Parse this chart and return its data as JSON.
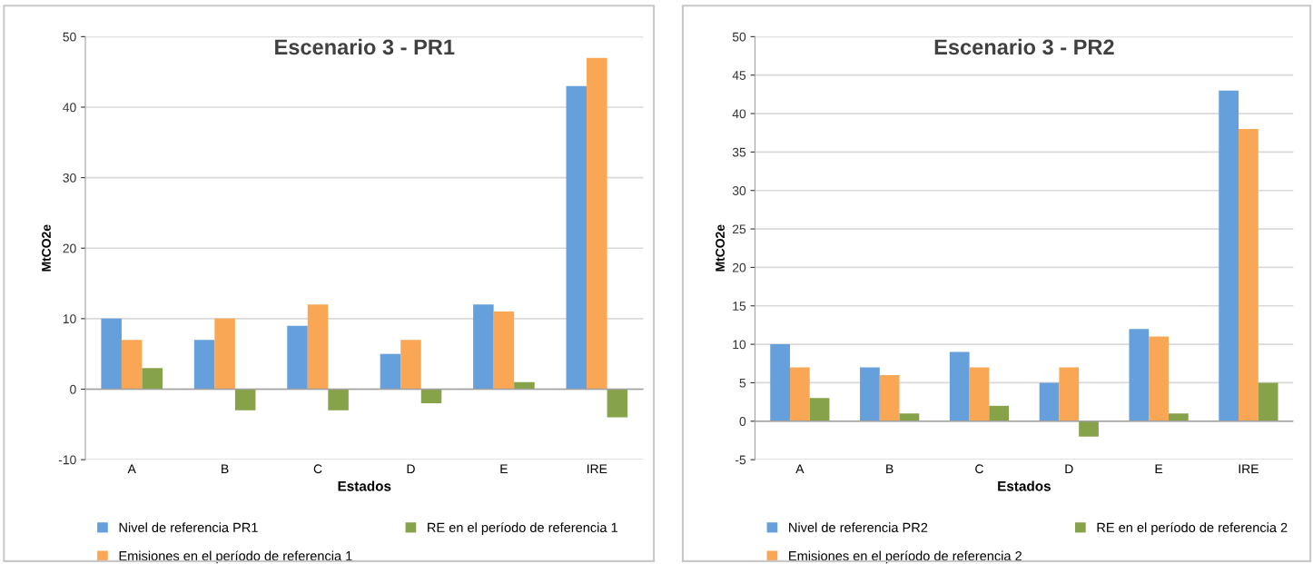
{
  "chart_data": [
    {
      "type": "bar",
      "title": "Escenario 3 - PR1",
      "xlabel": "Estados",
      "ylabel": "MtCO2e",
      "categories": [
        "A",
        "B",
        "C",
        "D",
        "E",
        "IRE"
      ],
      "series": [
        {
          "name": "Nivel de referencia PR1",
          "color": "#659fdc",
          "values": [
            10,
            7,
            9,
            5,
            12,
            43
          ]
        },
        {
          "name": "Emisiones en el período de referencia 1",
          "color": "#f9a655",
          "values": [
            7,
            10,
            12,
            7,
            11,
            47
          ]
        },
        {
          "name": "RE en el período de referencia 1",
          "color": "#87a34a",
          "values": [
            3,
            -3,
            -3,
            -2,
            1,
            -4
          ]
        }
      ],
      "ylim": [
        -10,
        50
      ],
      "yticks": [
        -10,
        0,
        10,
        20,
        30,
        40,
        50
      ],
      "grid": "y",
      "legend": "bottom"
    },
    {
      "type": "bar",
      "title": "Escenario 3 - PR2",
      "xlabel": "Estados",
      "ylabel": "MtCO2e",
      "categories": [
        "A",
        "B",
        "C",
        "D",
        "E",
        "IRE"
      ],
      "series": [
        {
          "name": "Nivel de referencia PR2",
          "color": "#659fdc",
          "values": [
            10,
            7,
            9,
            5,
            12,
            43
          ]
        },
        {
          "name": "Emisiones en el período de referencia 2",
          "color": "#f9a655",
          "values": [
            7,
            6,
            7,
            7,
            11,
            38
          ]
        },
        {
          "name": "RE en el período de referencia 2",
          "color": "#87a34a",
          "values": [
            3,
            1,
            2,
            -2,
            1,
            5
          ]
        }
      ],
      "ylim": [
        -5,
        50
      ],
      "yticks": [
        -5,
        0,
        5,
        10,
        15,
        20,
        25,
        30,
        35,
        40,
        45,
        50
      ],
      "grid": "y",
      "legend": "bottom"
    }
  ]
}
